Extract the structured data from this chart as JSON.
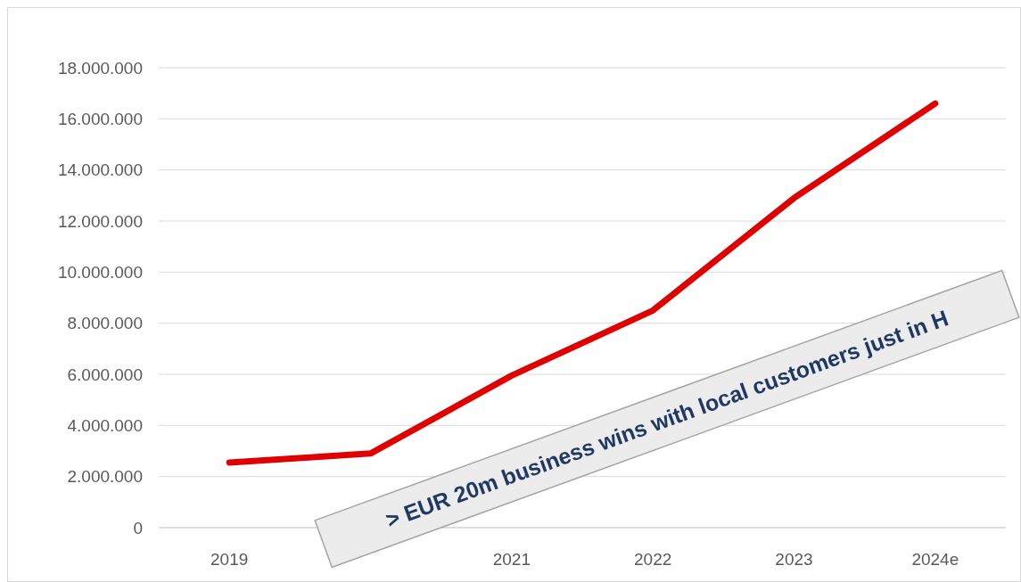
{
  "chart_data": {
    "type": "line",
    "categories": [
      "2019",
      null,
      "2021",
      "2022",
      "2023",
      "2024e"
    ],
    "series": [
      {
        "color": "#e00000",
        "values": [
          2550000,
          2900000,
          5950000,
          8500000,
          12900000,
          16600000
        ]
      }
    ],
    "ylim": [
      0,
      18000000
    ],
    "yticks": [
      0,
      {
        "value": 2000000,
        "label": "2.000.000"
      },
      {
        "value": 4000000,
        "label": "4.000.000"
      },
      {
        "value": 6000000,
        "label": "6.000.000"
      },
      {
        "value": 8000000,
        "label": "8.000.000"
      },
      {
        "value": 10000000,
        "label": "10.000.000"
      },
      {
        "value": 12000000,
        "label": "12.000.000"
      },
      {
        "value": 14000000,
        "label": "14.000.000"
      },
      {
        "value": 16000000,
        "label": "16.000.000"
      },
      {
        "value": 18000000,
        "label": "18.000.000"
      }
    ],
    "grid": "y",
    "marker": "none",
    "line_style": "solid",
    "annotations": [
      "> EUR 20m business wins with local customers just in H"
    ]
  }
}
